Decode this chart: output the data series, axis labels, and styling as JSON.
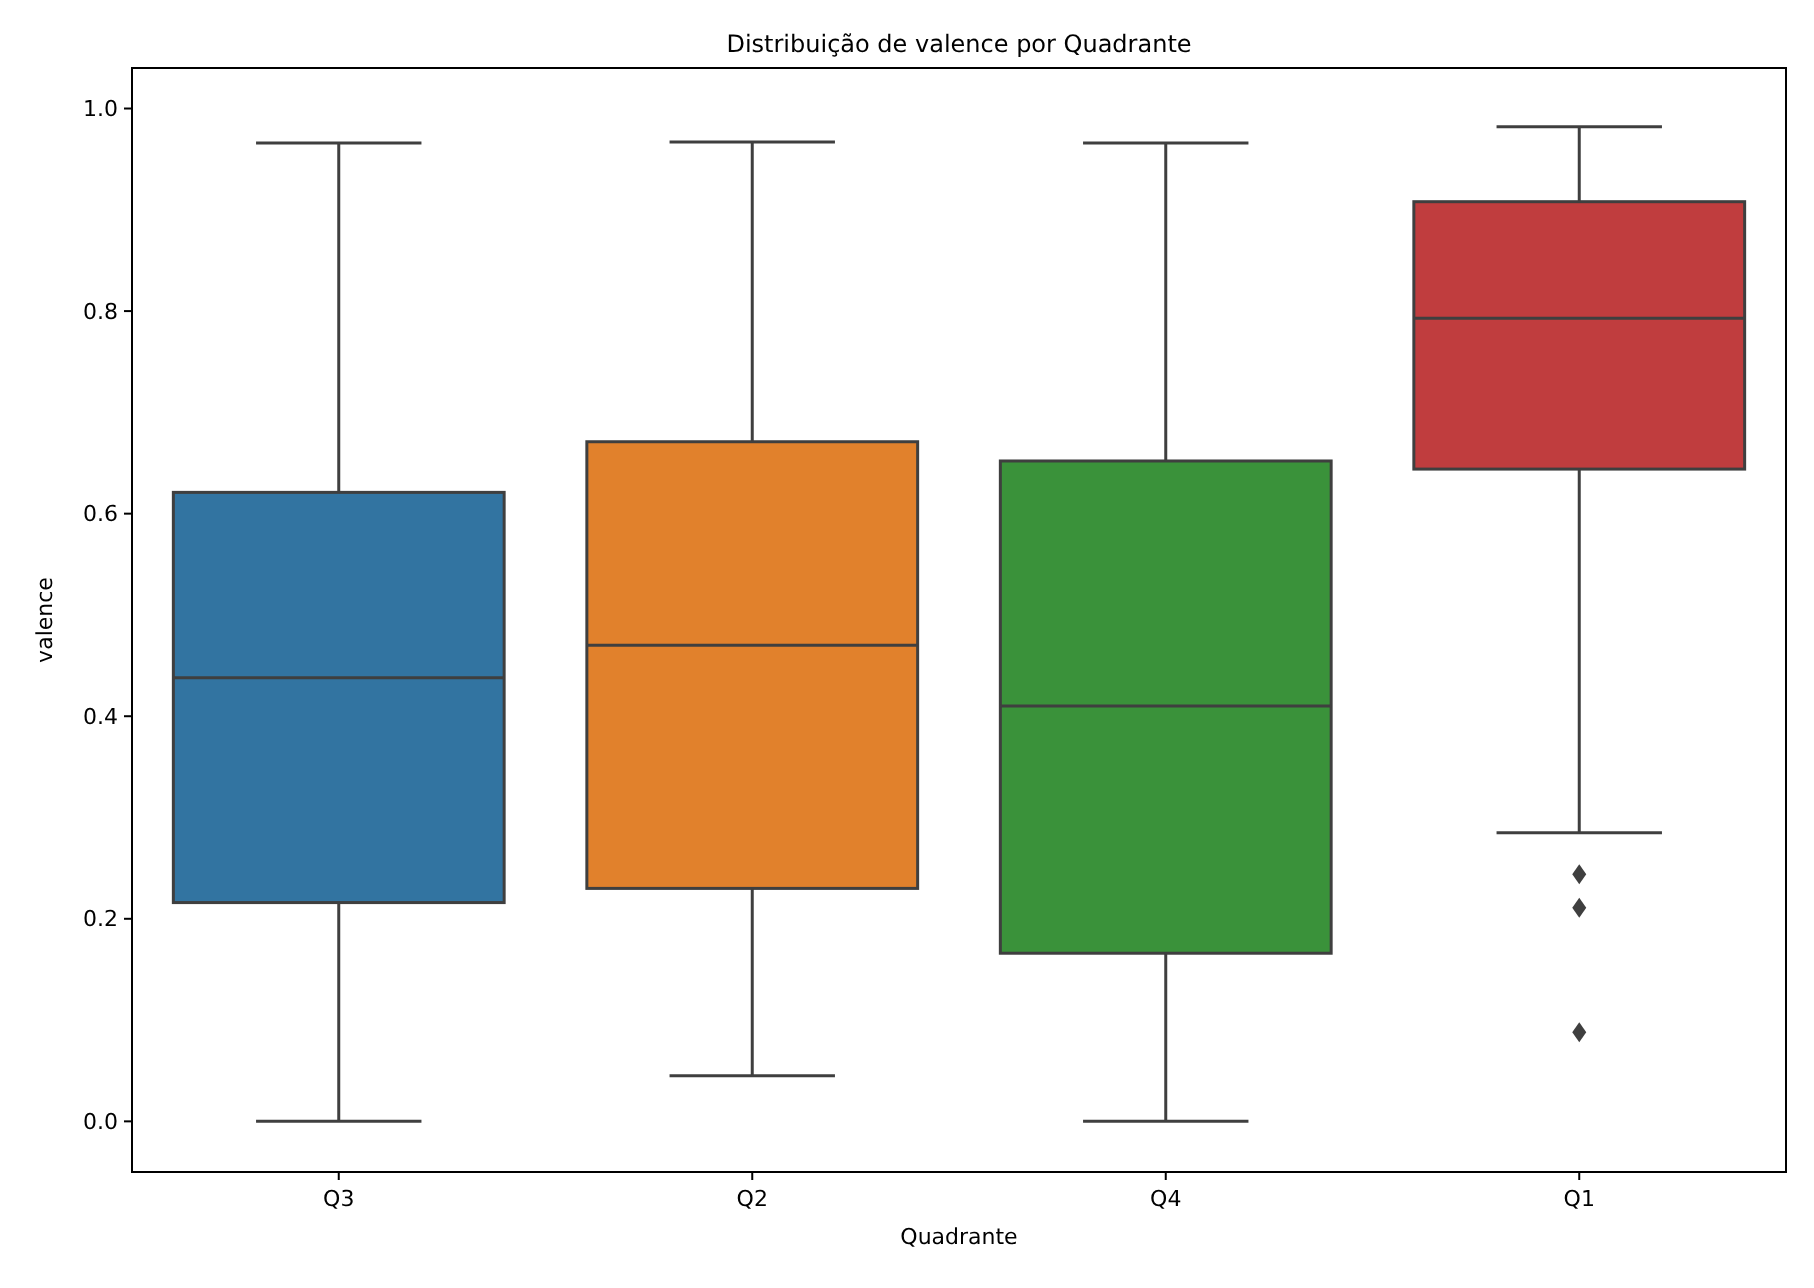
{
  "chart_data": {
    "type": "box",
    "title": "Distribuição de valence por Quadrante",
    "xlabel": "Quadrante",
    "ylabel": "valence",
    "categories": [
      "Q3",
      "Q2",
      "Q4",
      "Q1"
    ],
    "colors": [
      "#3274a1",
      "#e1812c",
      "#3a923a",
      "#c03d3e"
    ],
    "boxes": [
      {
        "low": 0.0,
        "q1": 0.216,
        "median": 0.438,
        "q3": 0.621,
        "high": 0.966
      },
      {
        "low": 0.045,
        "q1": 0.23,
        "median": 0.47,
        "q3": 0.671,
        "high": 0.967
      },
      {
        "low": 0.0,
        "q1": 0.166,
        "median": 0.41,
        "q3": 0.652,
        "high": 0.966
      },
      {
        "low": 0.285,
        "q1": 0.644,
        "median": 0.793,
        "q3": 0.908,
        "high": 0.982,
        "outliers": [
          0.244,
          0.211,
          0.088
        ]
      }
    ],
    "ylim": [
      -0.05,
      1.04
    ],
    "yticks": [
      {
        "value": 0,
        "label": "0.0"
      },
      {
        "value": 0.2,
        "label": "0.2"
      },
      {
        "value": 0.4,
        "label": "0.4"
      },
      {
        "value": 0.6,
        "label": "0.6"
      },
      {
        "value": 0.8,
        "label": "0.8"
      },
      {
        "value": 1,
        "label": "1.0"
      }
    ]
  }
}
